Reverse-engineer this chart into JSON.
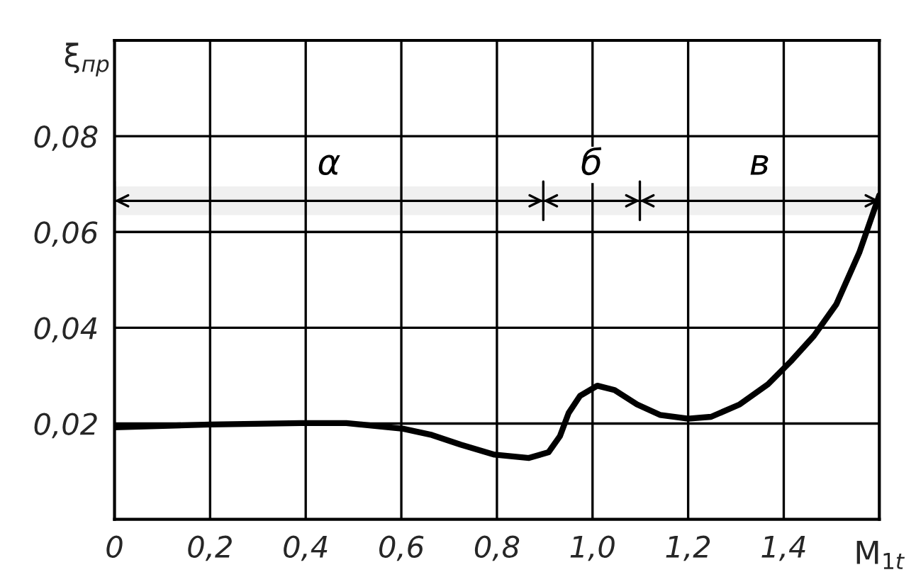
{
  "chart_data": {
    "type": "line",
    "xlabel": "M$_{1t}$",
    "ylabel": "ξ$_{пр}$",
    "x": [
      0,
      0.2,
      0.39,
      0.485,
      0.604,
      0.664,
      0.724,
      0.795,
      0.867,
      0.908,
      0.932,
      0.95,
      0.974,
      1.01,
      1.046,
      1.093,
      1.141,
      1.2,
      1.248,
      1.308,
      1.367,
      1.415,
      1.463,
      1.51,
      1.558,
      1.6
    ],
    "series": [
      {
        "color": "#000000",
        "values": [
          0.0192,
          0.0198,
          0.0201,
          0.0201,
          0.0189,
          0.0176,
          0.0156,
          0.0135,
          0.0128,
          0.014,
          0.0174,
          0.0222,
          0.0258,
          0.0279,
          0.027,
          0.024,
          0.0218,
          0.021,
          0.0214,
          0.024,
          0.0282,
          0.033,
          0.0383,
          0.0449,
          0.0557,
          0.0677
        ]
      }
    ],
    "xlim": [
      0,
      1.6
    ],
    "ylim": [
      0,
      0.1
    ],
    "xticks": [
      {
        "value": 0,
        "label": "0"
      },
      {
        "value": 0.2,
        "label": "0,2"
      },
      {
        "value": 0.4,
        "label": "0,4"
      },
      {
        "value": 0.6,
        "label": "0,6"
      },
      {
        "value": 0.8,
        "label": "0,8"
      },
      {
        "value": 1.0,
        "label": "1,0"
      },
      {
        "value": 1.2,
        "label": "1,2"
      },
      {
        "value": 1.4,
        "label": "1,4"
      },
      {
        "value": 1.6,
        "label": null
      }
    ],
    "yticks": [
      {
        "value": 0,
        "label": null
      },
      {
        "value": 0.02,
        "label": "0,02"
      },
      {
        "value": 0.04,
        "label": "0,04"
      },
      {
        "value": 0.06,
        "label": "0,06"
      },
      {
        "value": 0.08,
        "label": "0,08"
      },
      {
        "value": 0.1,
        "label": null
      }
    ],
    "bands": [
      {
        "axis": "x",
        "from": 0,
        "to": 0.897,
        "label": "α"
      },
      {
        "axis": "x",
        "from": 0.897,
        "to": 1.099,
        "label": "б"
      },
      {
        "axis": "x",
        "from": 1.099,
        "to": 1.6,
        "label": "в"
      }
    ],
    "grid": true,
    "marker": "none",
    "line_style": "solid"
  }
}
